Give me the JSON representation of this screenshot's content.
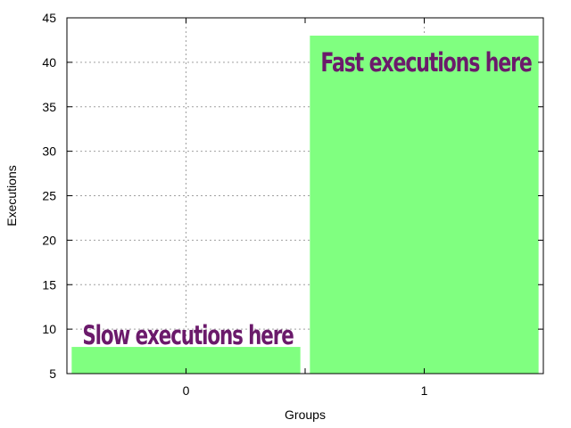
{
  "chart_data": {
    "type": "bar",
    "categories": [
      "0",
      "1"
    ],
    "values": [
      8,
      43
    ],
    "xlabel": "Groups",
    "ylabel": "Executions",
    "ylim": [
      5,
      45
    ],
    "yticks": [
      5,
      10,
      15,
      20,
      25,
      30,
      35,
      40,
      45
    ],
    "grid": true,
    "bar_color": "#80ff80",
    "annotations": [
      {
        "text": "Slow executions here",
        "category": "0",
        "color": "#6b1a6b"
      },
      {
        "text": "Fast executions here",
        "category": "1",
        "color": "#6b1a6b"
      }
    ]
  }
}
